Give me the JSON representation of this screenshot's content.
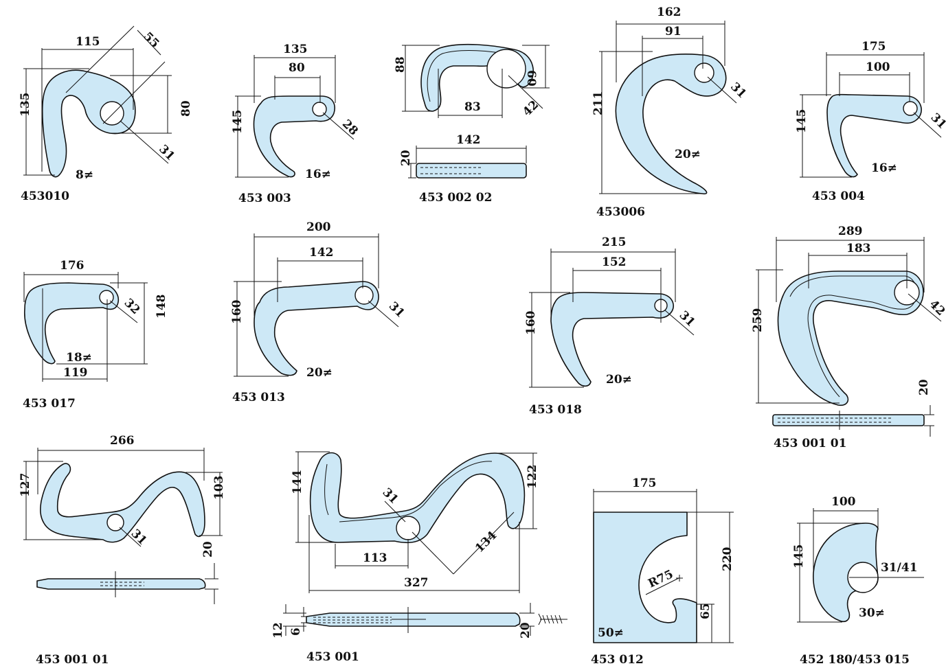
{
  "colors": {
    "part_fill": "#cde8f6",
    "outline": "#111111",
    "background": "#ffffff"
  },
  "parts": [
    {
      "code": "453010",
      "thickness": "8≠",
      "dims": [
        "115",
        "55",
        "135",
        "80",
        "31"
      ]
    },
    {
      "code": "453 003",
      "thickness": "16≠",
      "dims": [
        "135",
        "80",
        "145",
        "28"
      ]
    },
    {
      "code": "453 002 02",
      "dims": [
        "88",
        "60",
        "83",
        "42",
        "142",
        "20"
      ]
    },
    {
      "code": "453006",
      "thickness": "20≠",
      "dims": [
        "162",
        "91",
        "211",
        "31"
      ]
    },
    {
      "code": "453 004",
      "thickness": "16≠",
      "dims": [
        "175",
        "100",
        "145",
        "31"
      ]
    },
    {
      "code": "453 017",
      "thickness": "18≠",
      "dims": [
        "176",
        "32",
        "148",
        "119"
      ]
    },
    {
      "code": "453 013",
      "thickness": "20≠",
      "dims": [
        "200",
        "142",
        "160",
        "31"
      ]
    },
    {
      "code": "453 018",
      "thickness": "20≠",
      "dims": [
        "215",
        "152",
        "160",
        "31"
      ]
    },
    {
      "code": "453 001 01",
      "dims": [
        "289",
        "183",
        "259",
        "42",
        "20"
      ]
    },
    {
      "code": "453 001 01",
      "dims": [
        "266",
        "127",
        "103",
        "31",
        "20"
      ]
    },
    {
      "code": "453 001",
      "dims": [
        "144",
        "31",
        "122",
        "134",
        "113",
        "327",
        "12",
        "6",
        "20"
      ]
    },
    {
      "code": "453 012",
      "thickness": "50≠",
      "dims": [
        "175",
        "R75",
        "220",
        "65"
      ]
    },
    {
      "code": "452 180/453 015",
      "thickness": "30≠",
      "dims": [
        "100",
        "145",
        "31/41"
      ]
    }
  ]
}
